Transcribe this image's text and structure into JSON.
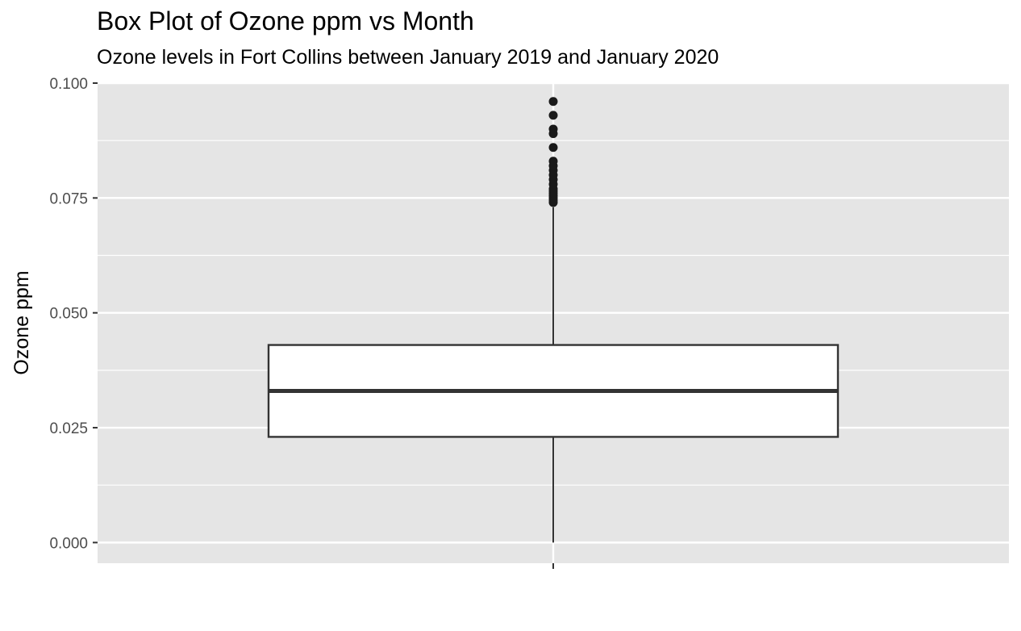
{
  "chart_data": {
    "type": "box",
    "title": "Box Plot of Ozone ppm vs Month",
    "subtitle": "Ozone levels in Fort Collins between January 2019 and January 2020",
    "xlabel": "",
    "ylabel": "Ozone ppm",
    "ylim": [
      -0.0045,
      0.1
    ],
    "y_ticks": [
      0.0,
      0.025,
      0.05,
      0.075,
      0.1
    ],
    "y_tick_labels": [
      "0.000",
      "0.025",
      "0.050",
      "0.075",
      "0.100"
    ],
    "grid": true,
    "box": {
      "lower_whisker": 0.0,
      "q1": 0.023,
      "median": 0.033,
      "q3": 0.043,
      "upper_whisker": 0.073,
      "outliers": [
        0.074,
        0.0745,
        0.075,
        0.0755,
        0.076,
        0.0765,
        0.077,
        0.078,
        0.079,
        0.08,
        0.081,
        0.082,
        0.083,
        0.086,
        0.089,
        0.09,
        0.093,
        0.096
      ]
    },
    "colors": {
      "panel": "#e5e5e5",
      "grid": "#ffffff",
      "box_fill": "#ffffff",
      "box_stroke": "#333333",
      "points": "#1a1a1a"
    }
  }
}
